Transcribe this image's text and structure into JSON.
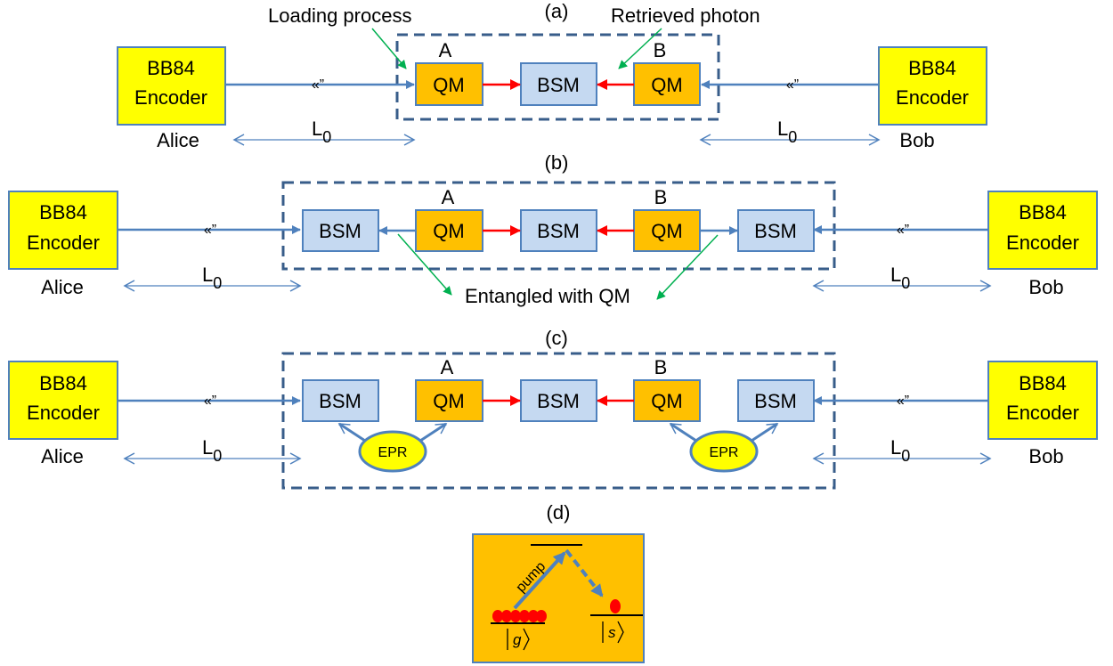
{
  "panels": {
    "a": "(a)",
    "b": "(b)",
    "c": "(c)",
    "d": "(d)"
  },
  "encoder": {
    "line1": "BB84",
    "line2": "Encoder"
  },
  "parties": {
    "alice": "Alice",
    "bob": "Bob"
  },
  "distance": {
    "main": "L",
    "sub": "0"
  },
  "fiber_break": "«”",
  "nodes": {
    "qm": "QM",
    "bsm": "BSM",
    "epr": "EPR",
    "a": "A",
    "b": "B"
  },
  "annotations": {
    "loading": "Loading process",
    "retrieved": "Retrieved photon",
    "entangled": "Entangled with QM"
  },
  "level_diagram": {
    "pump": "pump",
    "ground": "g",
    "storage": "s"
  },
  "colors": {
    "encoder_fill": "#ffff00",
    "qm_fill": "#ffc000",
    "bsm_fill": "#c5d9f1",
    "box_stroke": "#4f81bd",
    "dash_stroke": "#385d8a",
    "red_arrow": "#ff0000",
    "green_arrow": "#00b050",
    "atom": "#ff0000"
  }
}
